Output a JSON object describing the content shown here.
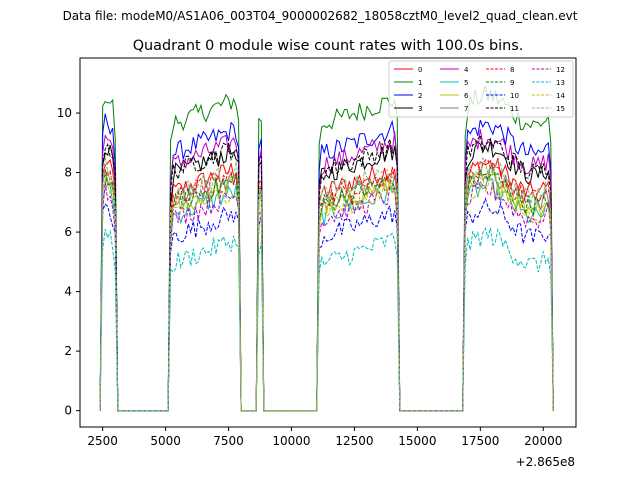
{
  "suptitle": "Data file: modeM0/AS1A06_003T04_9000002682_18058cztM0_level2_quad_clean.evt",
  "chart_data": {
    "type": "line",
    "title": "Quadrant 0 module wise count rates with 100.0s bins.",
    "xlabel": "",
    "ylabel": "",
    "x_offset_label": "+2.865e8",
    "xlim": [
      1600,
      21300
    ],
    "ylim": [
      -0.55,
      11.85
    ],
    "xticks": [
      2500,
      5000,
      7500,
      10000,
      12500,
      15000,
      17500,
      20000
    ],
    "xtick_labels": [
      "2500",
      "5000",
      "7500",
      "10000",
      "12500",
      "15000",
      "17500",
      "20000"
    ],
    "yticks": [
      0,
      2,
      4,
      6,
      8,
      10
    ],
    "ytick_labels": [
      "0",
      "2",
      "4",
      "6",
      "8",
      "10"
    ],
    "grid": false,
    "legend_position": "upper right",
    "legend_columns": 4,
    "active_segments": [
      [
        2450,
        3050
      ],
      [
        5150,
        7950
      ],
      [
        8650,
        8850
      ],
      [
        11100,
        14250
      ],
      [
        16850,
        20350
      ]
    ],
    "series": [
      {
        "name": "0",
        "color": "#ff0000",
        "style": "solid",
        "level": 8.0
      },
      {
        "name": "1",
        "color": "#008000",
        "style": "solid",
        "level": 10.3
      },
      {
        "name": "2",
        "color": "#0000ff",
        "style": "solid",
        "level": 9.3
      },
      {
        "name": "3",
        "color": "#000000",
        "style": "solid",
        "level": 8.6
      },
      {
        "name": "4",
        "color": "#bf00bf",
        "style": "solid",
        "level": 8.9
      },
      {
        "name": "5",
        "color": "#00bfbf",
        "style": "solid",
        "level": 7.2
      },
      {
        "name": "6",
        "color": "#bfbf00",
        "style": "solid",
        "level": 7.5
      },
      {
        "name": "7",
        "color": "#808080",
        "style": "solid",
        "level": 7.7
      },
      {
        "name": "8",
        "color": "#ff0000",
        "style": "dashed",
        "level": 7.8
      },
      {
        "name": "9",
        "color": "#008000",
        "style": "dashed",
        "level": 7.6
      },
      {
        "name": "10",
        "color": "#0000ff",
        "style": "dashed",
        "level": 6.5
      },
      {
        "name": "11",
        "color": "#000000",
        "style": "dashed",
        "level": 8.7
      },
      {
        "name": "12",
        "color": "#bf00bf",
        "style": "dashed",
        "level": 7.1
      },
      {
        "name": "13",
        "color": "#00bfbf",
        "style": "dashed",
        "level": 5.6
      },
      {
        "name": "14",
        "color": "#bfbf00",
        "style": "dashed",
        "level": 7.3
      },
      {
        "name": "15",
        "color": "#7fbf7f",
        "style": "dashed",
        "level": 7.9
      }
    ]
  }
}
